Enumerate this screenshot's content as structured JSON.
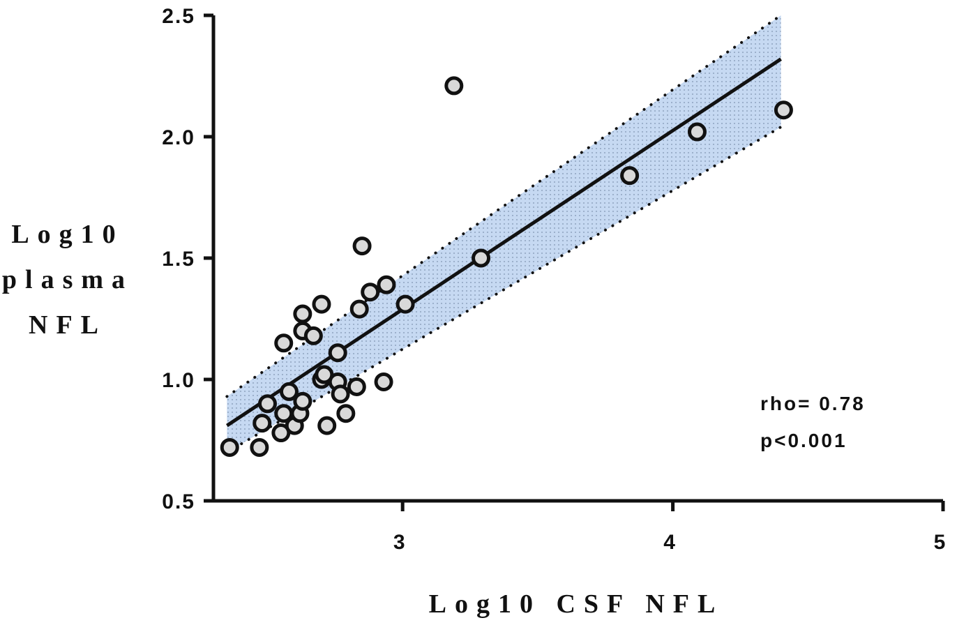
{
  "chart_data": {
    "type": "scatter",
    "xlabel": "Log10 CSF NFL",
    "ylabel_lines": [
      "Log10",
      "plasma",
      "NFL"
    ],
    "xlim": [
      2.3,
      5
    ],
    "ylim": [
      0.5,
      2.5
    ],
    "xticks": [
      3,
      4,
      5
    ],
    "xtick_labels": [
      "3",
      "4",
      "5"
    ],
    "yticks": [
      0.5,
      1.0,
      1.5,
      2.0,
      2.5
    ],
    "ytick_labels": [
      "0.5",
      "1.0",
      "1.5",
      "2.0",
      "2.5"
    ],
    "grid": false,
    "points": [
      {
        "x": 2.36,
        "y": 0.72
      },
      {
        "x": 2.47,
        "y": 0.72
      },
      {
        "x": 2.48,
        "y": 0.82
      },
      {
        "x": 2.5,
        "y": 0.9
      },
      {
        "x": 2.55,
        "y": 0.78
      },
      {
        "x": 2.56,
        "y": 0.86
      },
      {
        "x": 2.56,
        "y": 1.15
      },
      {
        "x": 2.58,
        "y": 0.95
      },
      {
        "x": 2.6,
        "y": 0.81
      },
      {
        "x": 2.62,
        "y": 0.86
      },
      {
        "x": 2.63,
        "y": 0.91
      },
      {
        "x": 2.63,
        "y": 1.2
      },
      {
        "x": 2.63,
        "y": 1.27
      },
      {
        "x": 2.67,
        "y": 1.18
      },
      {
        "x": 2.7,
        "y": 1.31
      },
      {
        "x": 2.7,
        "y": 1.0
      },
      {
        "x": 2.71,
        "y": 1.02
      },
      {
        "x": 2.72,
        "y": 0.81
      },
      {
        "x": 2.76,
        "y": 1.11
      },
      {
        "x": 2.76,
        "y": 0.99
      },
      {
        "x": 2.77,
        "y": 0.94
      },
      {
        "x": 2.79,
        "y": 0.86
      },
      {
        "x": 2.83,
        "y": 0.97
      },
      {
        "x": 2.84,
        "y": 1.29
      },
      {
        "x": 2.85,
        "y": 1.55
      },
      {
        "x": 2.88,
        "y": 1.36
      },
      {
        "x": 2.93,
        "y": 0.99
      },
      {
        "x": 2.94,
        "y": 1.39
      },
      {
        "x": 3.01,
        "y": 1.31
      },
      {
        "x": 3.19,
        "y": 2.21
      },
      {
        "x": 3.29,
        "y": 1.5
      },
      {
        "x": 3.84,
        "y": 1.84
      },
      {
        "x": 4.09,
        "y": 2.02
      },
      {
        "x": 4.41,
        "y": 2.11
      }
    ],
    "regression": {
      "x": [
        2.35,
        4.4
      ],
      "y": [
        0.81,
        2.32
      ]
    },
    "confidence_band": {
      "x": [
        2.35,
        4.4
      ],
      "upper": [
        0.93,
        2.5
      ],
      "lower": [
        0.7,
        2.04
      ]
    },
    "colors": {
      "band_fill": "#c6d9f2",
      "band_dots": "#7f93b0",
      "point_fill": "#d9d9d9",
      "stroke": "#111111"
    },
    "annotations": [
      "rho= 0.78",
      "p<0.001"
    ]
  }
}
